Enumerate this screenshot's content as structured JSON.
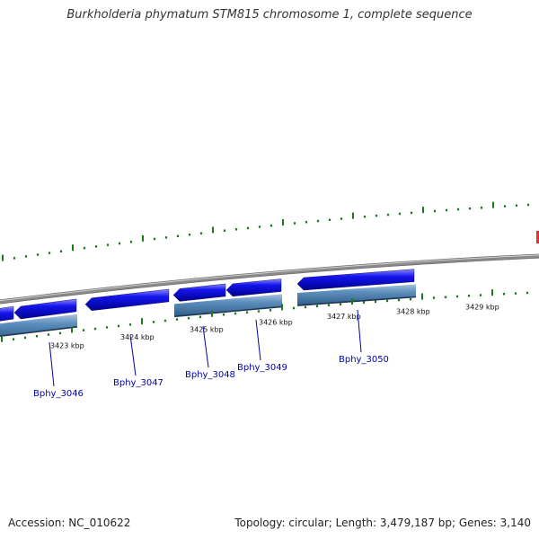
{
  "title": "Burkholderia phymatum STM815 chromosome 1, complete sequence",
  "footer": {
    "accession": "Accession: NC_010622",
    "summary": "Topology: circular; Length: 3,479,187 bp; Genes: 3,140"
  },
  "ticks": [
    "3423 kbp",
    "3424 kbp",
    "3425 kbp",
    "3426 kbp",
    "3427 kbp",
    "3428 kbp",
    "3429 kbp"
  ],
  "genes": [
    {
      "name": "Bphy_3046"
    },
    {
      "name": "Bphy_3047"
    },
    {
      "name": "Bphy_3048"
    },
    {
      "name": "Bphy_3049"
    },
    {
      "name": "Bphy_3050"
    }
  ],
  "colors": {
    "backbone": "#8a8a8a",
    "cds": "#1010e0",
    "gene_feature": "#4a7fb0",
    "tick": "#1a7a1a",
    "label": "#0000aa",
    "marker": "#e03030"
  }
}
